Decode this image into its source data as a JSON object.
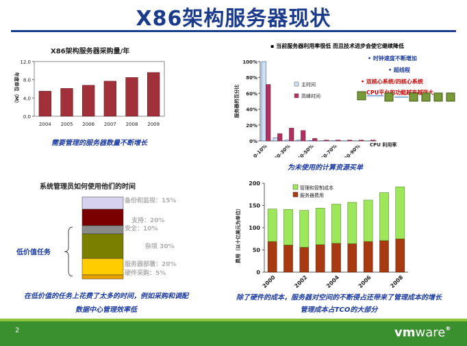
{
  "slide": {
    "title": "X86架构服务器现状",
    "page_number": "2",
    "logo": {
      "vm": "vm",
      "ware": "ware",
      "registered": "®"
    }
  },
  "panel1": {
    "caption": "需要管理的服务器数量不断增长"
  },
  "panel2": {
    "bullets": [
      {
        "text": "当前服务器利用率很低 而且技术进步会使它继续降低",
        "color": "#111111"
      },
      {
        "text": "时钟速度不断增加",
        "color": "#1a3aa0"
      },
      {
        "text": "超线程",
        "color": "#1a3aa0"
      },
      {
        "text": "双核心系统/四核心系统",
        "color": "#cc0000"
      },
      {
        "text": "CPU平台的功能越来越强大",
        "color": "#cc0000"
      }
    ],
    "caption": "为未使用的计算资源买单"
  },
  "panel3": {
    "title": "系统管理员如何使用他们的时间",
    "bracket_label": "低价值任务",
    "segments": [
      {
        "label": "备份和监视：15%",
        "color": "#d7d1f0",
        "value": 15
      },
      {
        "label": "支持：20%",
        "color": "#7a0000",
        "value": 20
      },
      {
        "label": "安全：10%",
        "color": "#8a8a8a",
        "value": 10
      },
      {
        "label": "杂项 30%",
        "color": "#7a7f00",
        "value": 30
      },
      {
        "label": "服务器部署：20%",
        "color": "#ffcc00",
        "value": 20
      },
      {
        "label": "硬件采购：5%",
        "color": "#e8a000",
        "value": 5
      }
    ],
    "caption_lines": [
      "在低价值的任务上花费了太多的时间，例如采购和调配",
      "数据中心管理效率低"
    ]
  },
  "panel4": {
    "caption_lines": [
      "除了硬件的成本，服务器对空间的不断侵占还带来了管理成本的增长",
      "管理成本占TCO的大部分"
    ]
  },
  "chart_data": [
    {
      "type": "bar",
      "title": "X86架构服务器采购量/年",
      "ylabel": "年度单位（M）",
      "categories": [
        "2004",
        "2005",
        "2006",
        "2007",
        "2008",
        "2009"
      ],
      "values": [
        5.5,
        6.1,
        6.8,
        7.7,
        8.5,
        9.6
      ],
      "ylim": [
        0,
        12
      ],
      "yticks": [
        "0.0",
        "4.0",
        "8.0",
        "12.0"
      ],
      "color": "#a0303a",
      "legend": "none"
    },
    {
      "type": "bar",
      "ylabel": "服务器的百分比",
      "xlabel": "CPU 利用率",
      "categories": [
        "0-10%",
        "",
        "20-30%",
        "",
        "40-50%",
        "",
        "60-70%",
        "",
        "80-90%",
        ""
      ],
      "series": [
        {
          "name": "主时间",
          "color": "#cfe0f5",
          "values": [
            100,
            4,
            1,
            1,
            0.5,
            0.3,
            0.3,
            0.2,
            0.2,
            0.1
          ]
        },
        {
          "name": "高峰时间",
          "color": "#b03060",
          "values": [
            71,
            9,
            16,
            13,
            3,
            1,
            1,
            1,
            1,
            1
          ]
        }
      ],
      "ylim": [
        0,
        100
      ],
      "yticks": [
        "0%",
        "20%",
        "40%",
        "60%",
        "80%",
        "100%"
      ],
      "xtick_labels": [
        "0-10%",
        "20-30%",
        "40-50%",
        "60-70%",
        "80-90%"
      ],
      "legend": "center-right"
    },
    {
      "type": "bar",
      "ylabel": "费用（以十亿美元为单位）",
      "categories": [
        "2000",
        "2001",
        "2002",
        "2003",
        "2004",
        "2005",
        "2006",
        "2007",
        "2008"
      ],
      "xtick_labels": [
        "2000",
        "2002",
        "2004",
        "2006",
        "2008"
      ],
      "series": [
        {
          "name": "管理和管制成本",
          "color": "#9ee65a",
          "values": [
            73,
            80,
            83,
            82,
            88,
            93,
            93,
            108,
            117
          ]
        },
        {
          "name": "服务器费用",
          "color": "#a83a12",
          "values": [
            69,
            61,
            56,
            62,
            65,
            64,
            69,
            71,
            75
          ]
        }
      ],
      "stacked": true,
      "ylim": [
        0,
        200
      ],
      "yticks": [
        "0",
        "50",
        "100",
        "150",
        "200"
      ],
      "legend": "top-left"
    }
  ]
}
